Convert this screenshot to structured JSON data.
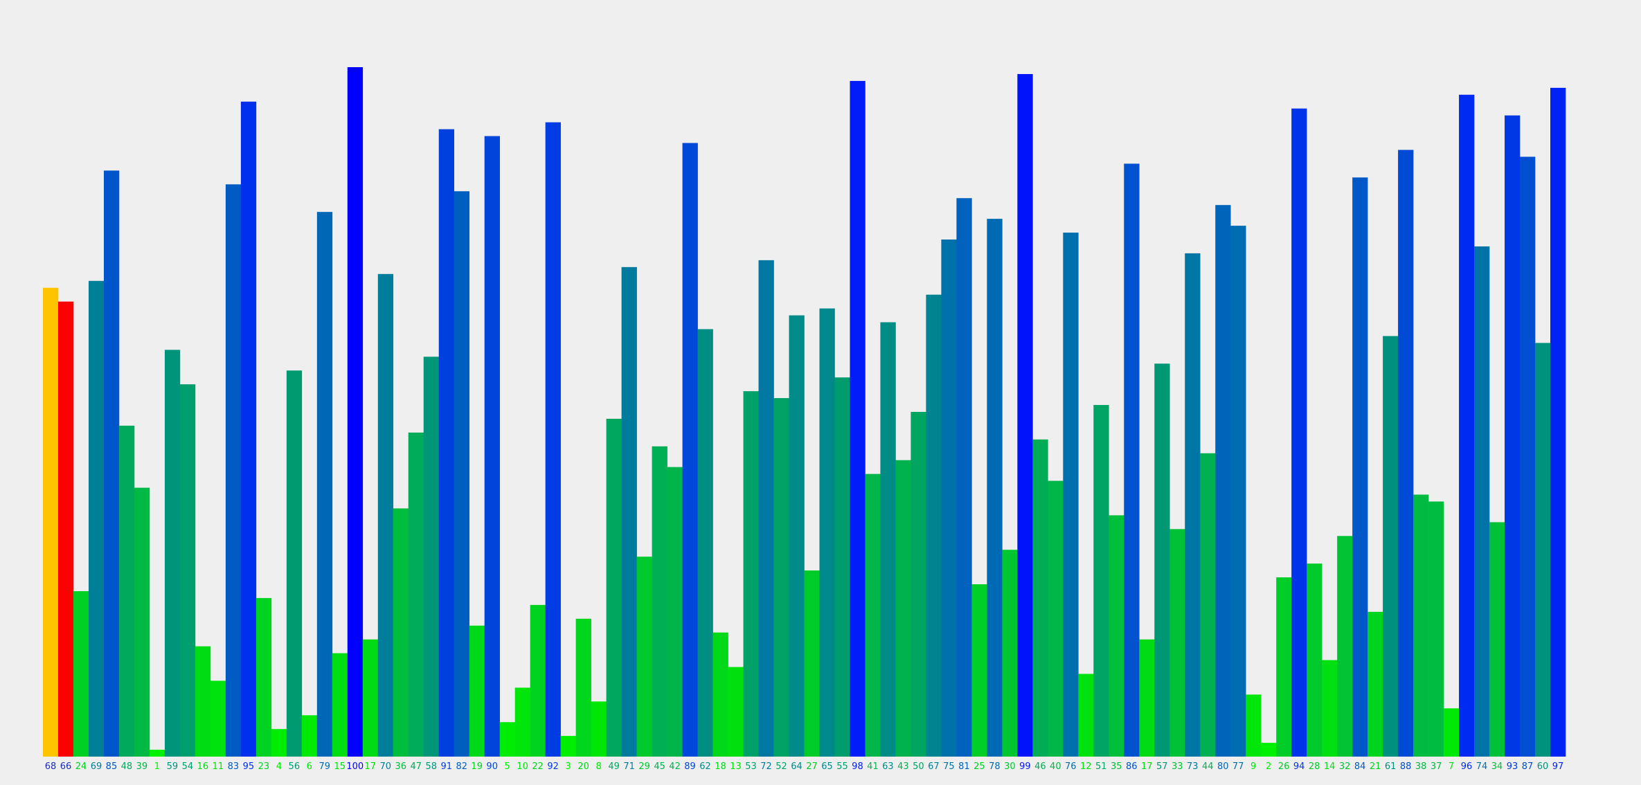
{
  "chart_data": {
    "type": "bar",
    "title": "",
    "xlabel": "",
    "ylabel": "",
    "ylim": [
      0,
      100
    ],
    "grid": false,
    "legend": "none",
    "values": [
      68,
      66,
      24,
      69,
      85,
      48,
      39,
      1,
      59,
      54,
      16,
      11,
      83,
      95,
      23,
      4,
      56,
      6,
      79,
      15,
      100,
      17,
      70,
      36,
      47,
      58,
      91,
      82,
      19,
      90,
      5,
      10,
      22,
      92,
      3,
      20,
      8,
      49,
      71,
      29,
      45,
      42,
      89,
      62,
      18,
      13,
      53,
      72,
      52,
      64,
      27,
      65,
      55,
      98,
      41,
      63,
      43,
      50,
      67,
      75,
      81,
      25,
      78,
      30,
      99,
      46,
      40,
      76,
      12,
      51,
      35,
      86,
      17,
      57,
      33,
      73,
      44,
      80,
      77,
      9,
      2,
      26,
      94,
      28,
      14,
      32,
      84,
      21,
      61,
      88,
      38,
      37,
      7,
      96,
      74,
      34,
      93,
      87,
      60,
      97
    ],
    "categories": [
      "68",
      "66",
      "24",
      "69",
      "85",
      "48",
      "39",
      "1",
      "59",
      "54",
      "16",
      "11",
      "83",
      "95",
      "23",
      "4",
      "56",
      "6",
      "79",
      "15",
      "100",
      "17",
      "70",
      "36",
      "47",
      "58",
      "91",
      "82",
      "19",
      "90",
      "5",
      "10",
      "22",
      "92",
      "3",
      "20",
      "8",
      "49",
      "71",
      "29",
      "45",
      "42",
      "89",
      "62",
      "18",
      "13",
      "53",
      "72",
      "52",
      "64",
      "27",
      "65",
      "55",
      "98",
      "41",
      "63",
      "43",
      "50",
      "67",
      "75",
      "81",
      "25",
      "78",
      "30",
      "99",
      "46",
      "40",
      "76",
      "12",
      "51",
      "35",
      "86",
      "17",
      "57",
      "33",
      "73",
      "44",
      "80",
      "77",
      "9",
      "2",
      "26",
      "94",
      "28",
      "14",
      "32",
      "84",
      "21",
      "61",
      "88",
      "38",
      "37",
      "7",
      "96",
      "74",
      "34",
      "93",
      "87",
      "60",
      "97"
    ],
    "highlight": [
      {
        "index": 0,
        "color": "#ffc400"
      },
      {
        "index": 1,
        "color": "#ff0000"
      }
    ],
    "color_scale": {
      "low": "#00ff00",
      "high": "#0000ff"
    }
  }
}
